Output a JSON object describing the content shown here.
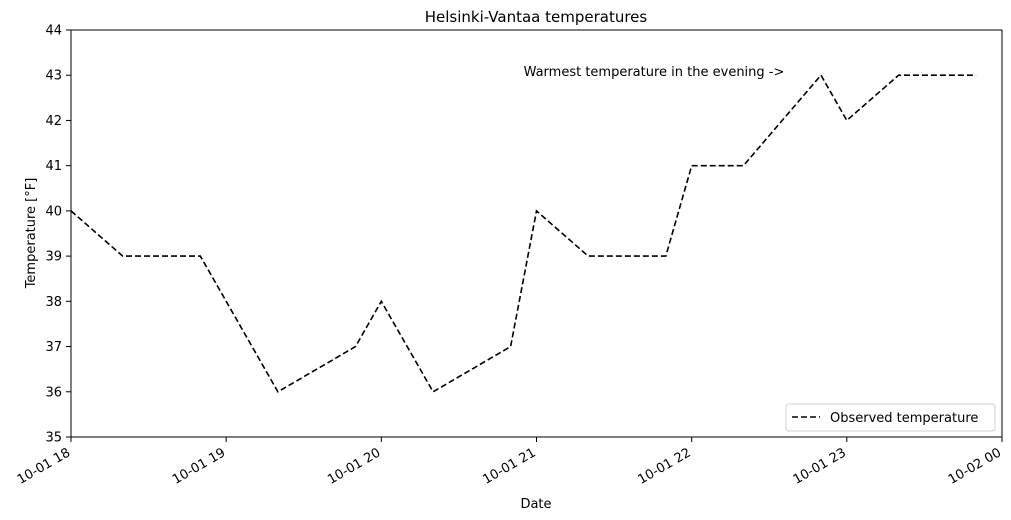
{
  "chart_data": {
    "type": "line",
    "title": "Helsinki-Vantaa temperatures",
    "xlabel": "Date",
    "ylabel": "Temperature [°F]",
    "xlim": [
      "10-01 18:00",
      "10-02 00:00"
    ],
    "ylim": [
      35,
      44
    ],
    "y_ticks": [
      35,
      36,
      37,
      38,
      39,
      40,
      41,
      42,
      43,
      44
    ],
    "x_ticks": [
      "10-01 18",
      "10-01 19",
      "10-01 20",
      "10-01 21",
      "10-01 22",
      "10-01 23",
      "10-02 00"
    ],
    "grid": false,
    "legend_position": "bottom-right",
    "annotation": {
      "text": "Warmest temperature in the evening ->",
      "x": "10-01 20:55",
      "y": 43
    },
    "series": [
      {
        "name": "Observed temperature",
        "color": "#000000",
        "style": "dashed",
        "x": [
          "10-01 18:00",
          "10-01 18:20",
          "10-01 18:50",
          "10-01 19:00",
          "10-01 19:20",
          "10-01 19:50",
          "10-01 20:00",
          "10-01 20:20",
          "10-01 20:50",
          "10-01 21:00",
          "10-01 21:20",
          "10-01 21:50",
          "10-01 22:00",
          "10-01 22:20",
          "10-01 22:50",
          "10-01 23:00",
          "10-01 23:20",
          "10-01 23:50"
        ],
        "values": [
          40,
          39,
          39,
          38,
          36,
          37,
          38,
          36,
          37,
          40,
          39,
          39,
          41,
          41,
          43,
          42,
          43,
          43
        ]
      }
    ]
  }
}
